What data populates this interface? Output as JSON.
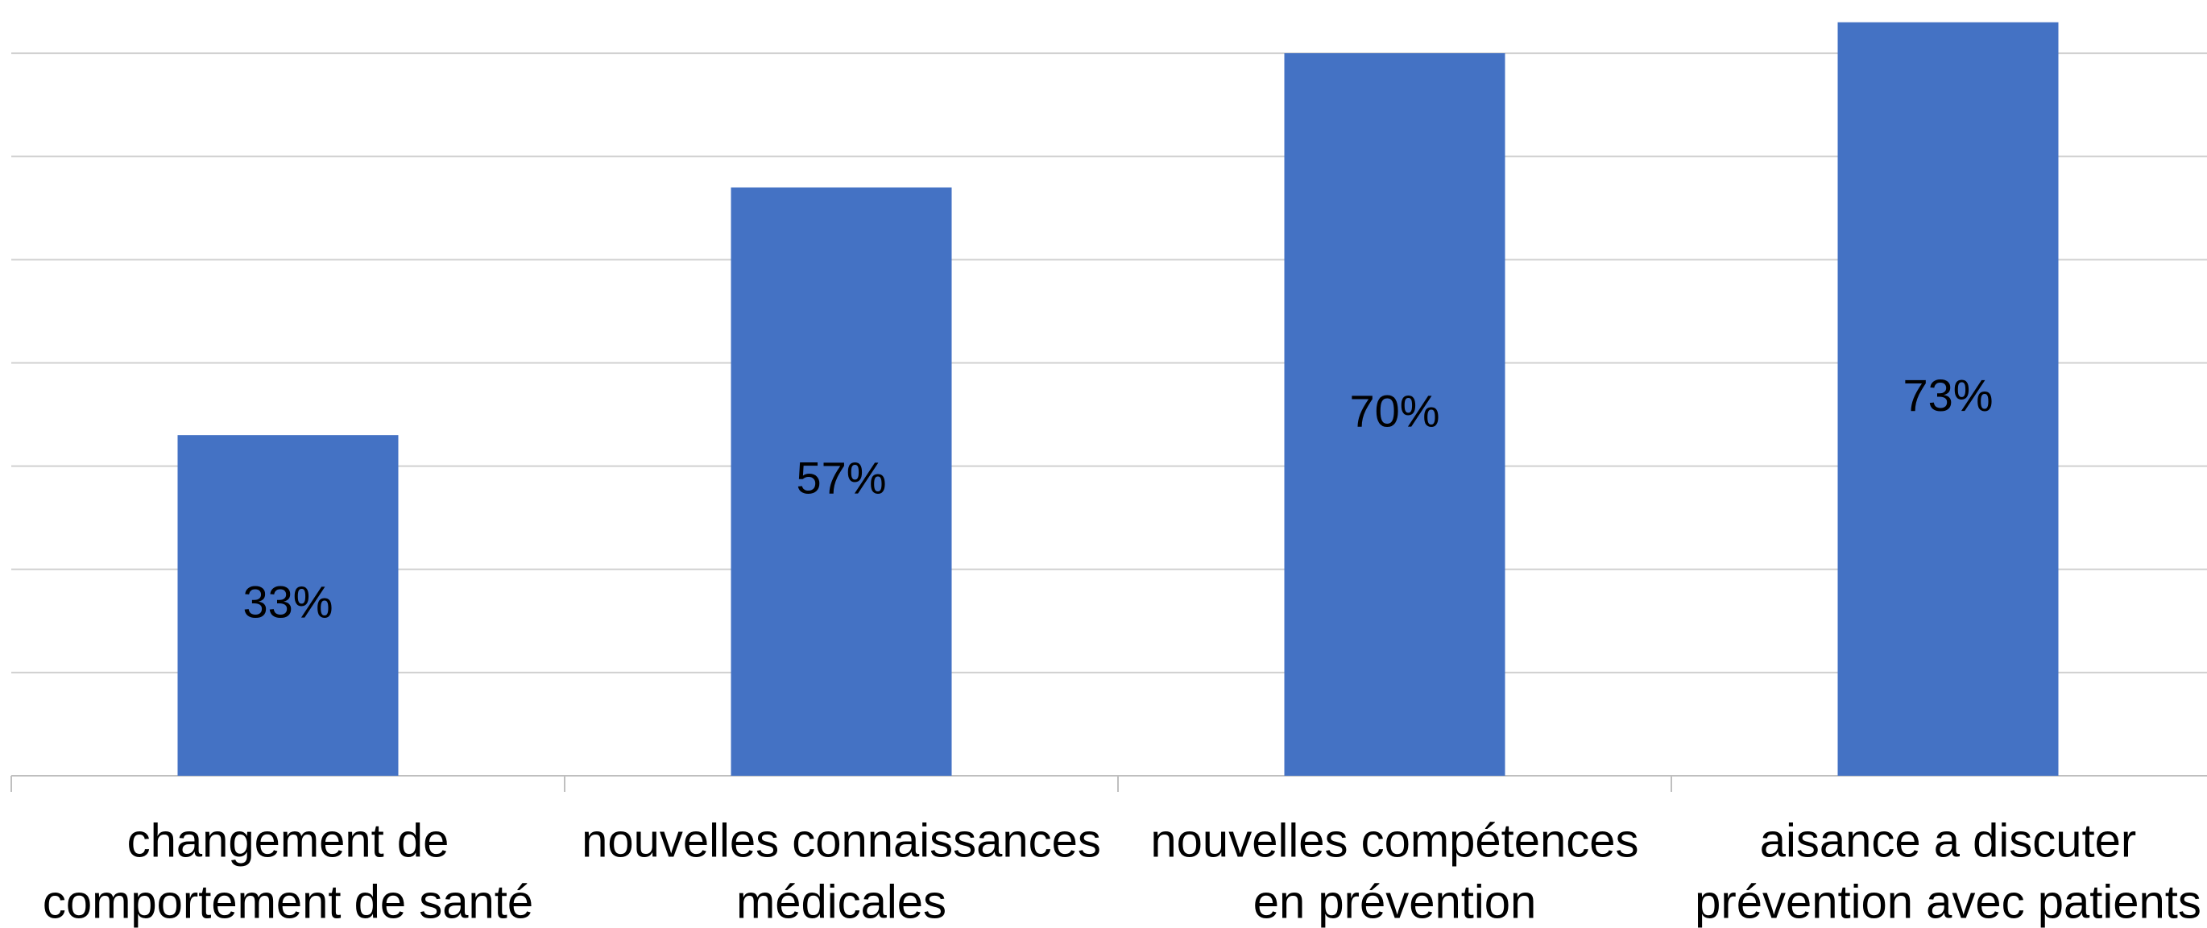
{
  "chart_data": {
    "type": "bar",
    "categories": [
      [
        "changement de",
        "comportement de santé"
      ],
      [
        "nouvelles connaissances",
        "médicales"
      ],
      [
        "nouvelles compétences",
        "en prévention"
      ],
      [
        "aisance a discuter",
        "prévention avec patients"
      ]
    ],
    "values": [
      33,
      57,
      70,
      73
    ],
    "value_labels": [
      "33%",
      "57%",
      "70%",
      "73%"
    ],
    "color": "#4472c4",
    "ylim": [
      0,
      75
    ],
    "yticks": [
      0,
      10,
      20,
      30,
      40,
      50,
      60,
      70
    ],
    "grid": true
  }
}
